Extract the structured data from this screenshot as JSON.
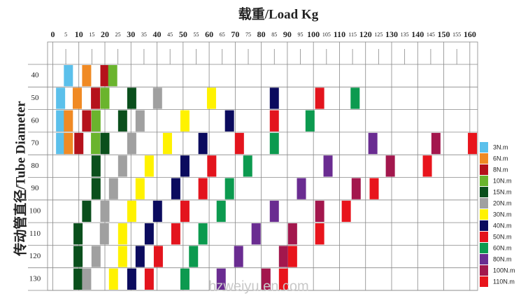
{
  "chart_data": {
    "type": "matrix",
    "title": "载重/Load Kg",
    "y_label": "传动管直径/Tube Diameter",
    "watermark": "hzweiyu.en.com",
    "xlim": [
      -2,
      163
    ],
    "xticks": [
      0,
      5,
      10,
      15,
      20,
      25,
      30,
      35,
      40,
      45,
      50,
      55,
      60,
      65,
      70,
      75,
      80,
      85,
      90,
      95,
      100,
      105,
      110,
      115,
      120,
      125,
      130,
      135,
      140,
      145,
      150,
      155,
      160
    ],
    "categories": [
      40,
      50,
      60,
      70,
      80,
      90,
      100,
      110,
      120,
      130
    ],
    "series": [
      {
        "name": "3N.m",
        "color": "#5bc0eb",
        "values": [
          6,
          3,
          3,
          3,
          null,
          null,
          null,
          null,
          null,
          null
        ]
      },
      {
        "name": "6N.m",
        "color": "#f08a24",
        "values": [
          13,
          9.4,
          6,
          6,
          null,
          null,
          null,
          null,
          null,
          null
        ]
      },
      {
        "name": "8N.m",
        "color": "#b5121b",
        "values": [
          20,
          16.4,
          13,
          10,
          null,
          null,
          null,
          null,
          null,
          null
        ]
      },
      {
        "name": "10N.m",
        "color": "#6ab42d",
        "values": [
          23,
          20,
          16.6,
          16.4,
          null,
          null,
          null,
          null,
          null,
          null
        ]
      },
      {
        "name": "15N.m",
        "color": "#0a4f1c",
        "values": [
          null,
          30.3,
          26.8,
          20,
          16.6,
          16.6,
          13,
          9.7,
          9.7,
          9.7
        ]
      },
      {
        "name": "20N.m",
        "color": "#a0a0a0",
        "values": [
          null,
          40.2,
          33.5,
          30.3,
          26.8,
          23.3,
          20,
          19.8,
          16.6,
          13
        ]
      },
      {
        "name": "30N.m",
        "color": "#fff200",
        "values": [
          null,
          60.9,
          50.7,
          44,
          37,
          33.5,
          30.3,
          26.8,
          26.8,
          23.3
        ]
      },
      {
        "name": "40N.m",
        "color": "#0b0b5e",
        "values": [
          null,
          85,
          67.8,
          57.6,
          50.7,
          47.2,
          40.2,
          37,
          33.5,
          30.3
        ]
      },
      {
        "name": "50N.m",
        "color": "#e3141d",
        "values": [
          null,
          102.4,
          85,
          71.6,
          61,
          57.6,
          50.7,
          47.2,
          40.5,
          37
        ]
      },
      {
        "name": "60N.m",
        "color": "#0c9a4f",
        "values": [
          null,
          116,
          98.7,
          85,
          74.8,
          67.8,
          64.6,
          57.6,
          54,
          50.7
        ]
      },
      {
        "name": "80N.m",
        "color": "#6a2c91",
        "values": [
          null,
          null,
          null,
          122.8,
          105.6,
          95.4,
          85,
          78,
          71.3,
          64.6
        ]
      },
      {
        "name": "100N.m",
        "color": "#a3174d",
        "values": [
          null,
          null,
          null,
          147,
          129.5,
          116.4,
          102.4,
          92,
          88.5,
          81.8
        ]
      },
      {
        "name": "110N.m",
        "color": "#e8141c",
        "values": [
          null,
          null,
          null,
          161,
          143.7,
          123.3,
          112.6,
          102.4,
          92,
          88.5
        ]
      }
    ]
  }
}
